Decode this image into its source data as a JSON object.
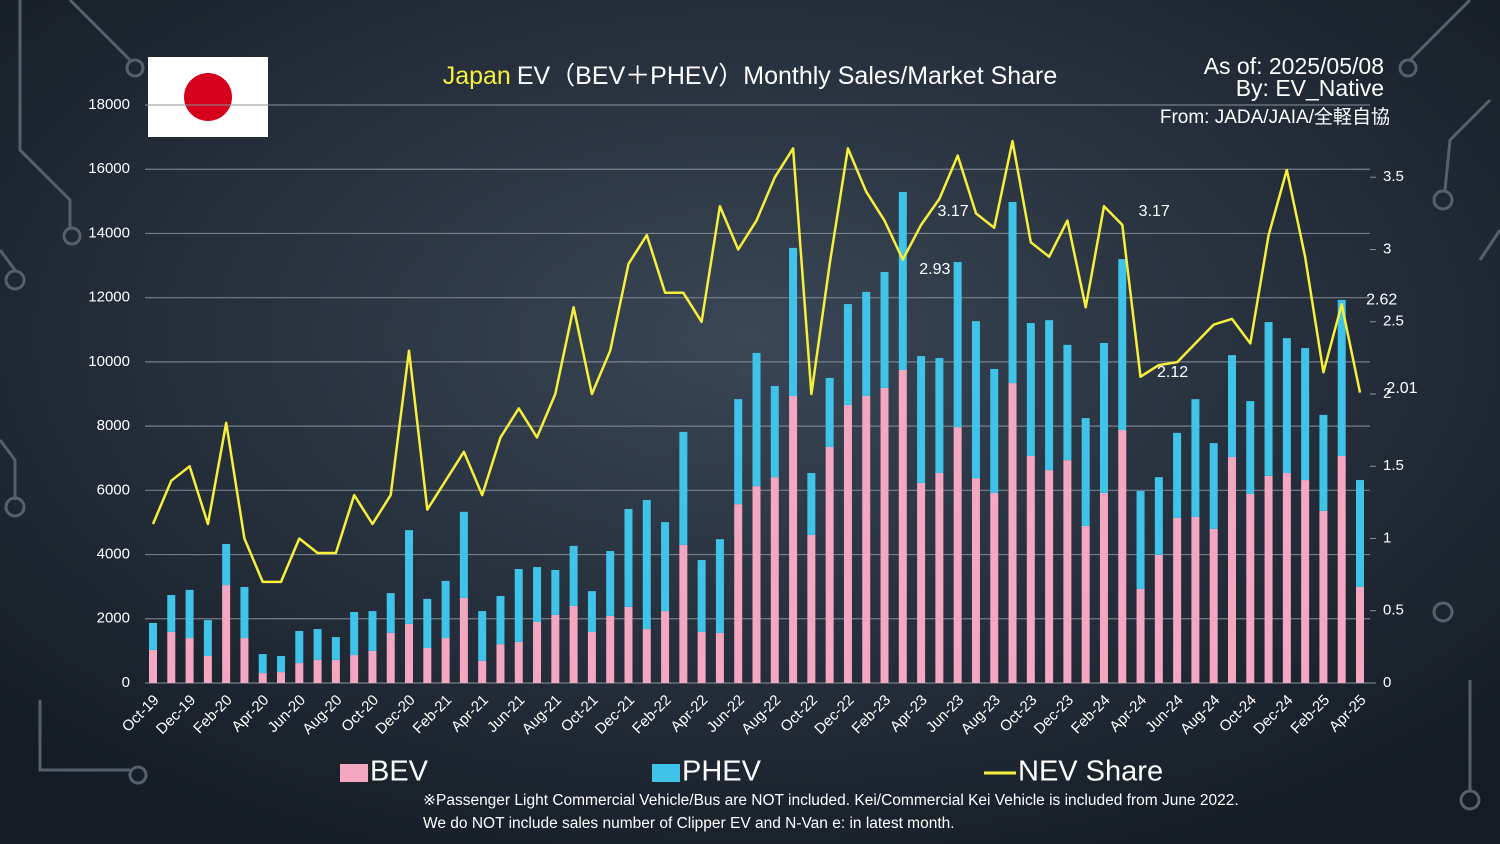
{
  "chart_data": {
    "type": "stacked-bar-line",
    "title_highlight": "Japan",
    "title": "EV（BEV＋PHEV）Monthly Sales/Market Share",
    "as_of": "As of: 2025/05/08",
    "by": "By: EV_Native",
    "source": "From: JADA/JAIA/全軽自協",
    "notes": [
      "※Passenger Light Commercial Vehicle/Bus are NOT included. Kei/Commercial Kei Vehicle is included from June 2022.",
      "We do NOT include sales number of Clipper EV and N-Van e: in latest month."
    ],
    "categories": [
      "Oct-19",
      null,
      "Dec-19",
      null,
      "Feb-20",
      null,
      "Apr-20",
      null,
      "Jun-20",
      null,
      "Aug-20",
      null,
      "Oct-20",
      null,
      "Dec-20",
      null,
      "Feb-21",
      null,
      "Apr-21",
      null,
      "Jun-21",
      null,
      "Aug-21",
      null,
      "Oct-21",
      null,
      "Dec-21",
      null,
      "Feb-22",
      null,
      "Apr-22",
      null,
      "Jun-22",
      null,
      "Aug-22",
      null,
      "Oct-22",
      null,
      "Dec-22",
      null,
      "Feb-23",
      null,
      "Apr-23",
      null,
      "Jun-23",
      null,
      "Aug-23",
      null,
      "Oct-23",
      null,
      "Dec-23",
      null,
      "Feb-24",
      null,
      "Apr-24",
      null,
      "Jun-24",
      null,
      "Aug-24",
      null,
      "Oct-24",
      null,
      "Dec-24",
      null,
      "Feb-25",
      null,
      "Apr-25"
    ],
    "series": [
      {
        "name": "BEV",
        "color": "#f4a7c1",
        "values": [
          1030,
          1590,
          1400,
          840,
          3050,
          1400,
          310,
          340,
          620,
          720,
          720,
          870,
          1000,
          1560,
          1840,
          1090,
          1400,
          2650,
          690,
          1210,
          1280,
          1900,
          2120,
          2400,
          1590,
          2090,
          2370,
          1680,
          2240,
          4300,
          1590,
          1560,
          5570,
          6130,
          6410,
          8940,
          4610,
          7350,
          8660,
          8940,
          9190,
          9750,
          6230,
          6540,
          7970,
          6380,
          5920,
          9340,
          7070,
          6630,
          6940,
          4890,
          5920,
          7880,
          2930,
          3990,
          5140,
          5170,
          4800,
          7040,
          5890,
          6450,
          6540,
          6320,
          5360,
          7070,
          2990
        ]
      },
      {
        "name": "PHEV",
        "color": "#3fc3e8",
        "values": [
          840,
          1150,
          1500,
          1120,
          1280,
          1590,
          590,
          500,
          1000,
          960,
          710,
          1340,
          1240,
          1240,
          2920,
          1530,
          1780,
          2680,
          1550,
          1500,
          2270,
          1710,
          1400,
          1870,
          1270,
          2020,
          3050,
          4020,
          2770,
          3520,
          2240,
          2920,
          3270,
          4150,
          2840,
          4610,
          1930,
          2150,
          3140,
          3240,
          3610,
          5540,
          3950,
          3580,
          5140,
          4890,
          3860,
          5640,
          4140,
          4670,
          3590,
          3360,
          4670,
          5320,
          3050,
          2420,
          2650,
          3670,
          2670,
          3170,
          2890,
          4790,
          4200,
          4110,
          2990,
          4860,
          3330
        ]
      },
      {
        "name": "NEV Share",
        "color": "#f6f03c",
        "axis": "y2",
        "values": [
          1.1,
          1.4,
          1.5,
          1.1,
          1.8,
          1.0,
          0.7,
          0.7,
          1.0,
          0.9,
          0.9,
          1.3,
          1.1,
          1.3,
          2.3,
          1.2,
          1.4,
          1.6,
          1.3,
          1.7,
          1.9,
          1.7,
          2.0,
          2.6,
          2.0,
          2.3,
          2.9,
          3.1,
          2.7,
          2.7,
          2.5,
          3.3,
          3.0,
          3.2,
          3.5,
          3.7,
          2.0,
          2.9,
          3.7,
          3.4,
          3.2,
          2.93,
          3.17,
          3.35,
          3.65,
          3.25,
          3.15,
          3.75,
          3.05,
          2.95,
          3.2,
          2.6,
          3.3,
          3.17,
          2.12,
          2.2,
          2.22,
          2.35,
          2.48,
          2.52,
          2.35,
          3.1,
          3.55,
          2.95,
          2.15,
          2.62,
          2.01
        ]
      }
    ],
    "ylim": [
      0,
      18000
    ],
    "yticks": [
      0,
      2000,
      4000,
      6000,
      8000,
      10000,
      12000,
      14000,
      16000,
      18000
    ],
    "y2lim": [
      0,
      4
    ],
    "y2ticks": [
      0,
      0.5,
      1,
      1.5,
      2,
      2.5,
      3,
      3.5
    ],
    "grid": true
  }
}
